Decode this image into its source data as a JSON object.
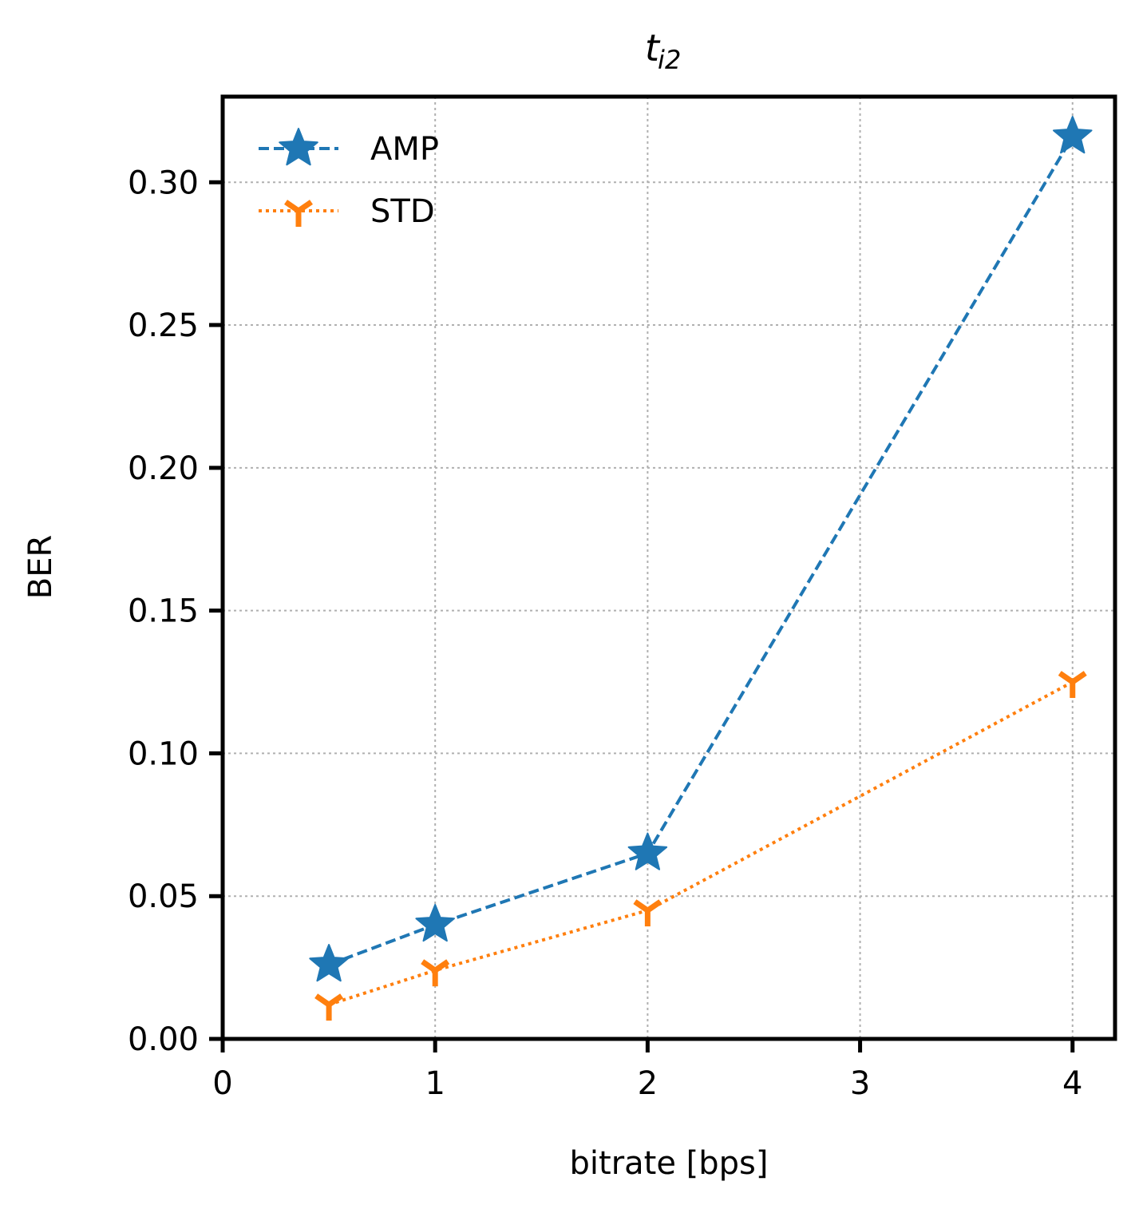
{
  "chart_data": {
    "type": "line",
    "title": "t",
    "title_subscript": "i2",
    "xlabel": "bitrate [bps]",
    "ylabel": "BER",
    "xlim": [
      0,
      4.2
    ],
    "ylim": [
      0,
      0.33
    ],
    "xticks": [
      0,
      1,
      2,
      3,
      4
    ],
    "xtick_labels": [
      "0",
      "1",
      "2",
      "3",
      "4"
    ],
    "yticks": [
      0,
      0.05,
      0.1,
      0.15,
      0.2,
      0.25,
      0.3
    ],
    "ytick_labels": [
      "0.00",
      "0.05",
      "0.10",
      "0.15",
      "0.20",
      "0.25",
      "0.30"
    ],
    "grid": true,
    "legend_position": "top-left",
    "x": [
      0.5,
      1,
      2,
      4
    ],
    "series": [
      {
        "name": "AMP",
        "values": [
          0.026,
          0.04,
          0.065,
          0.316
        ],
        "color": "#1f77b4",
        "marker": "star",
        "line_style": "dashed"
      },
      {
        "name": "STD",
        "values": [
          0.012,
          0.024,
          0.045,
          0.125
        ],
        "color": "#ff7f0e",
        "marker": "tri-down",
        "line_style": "dotted"
      }
    ]
  }
}
